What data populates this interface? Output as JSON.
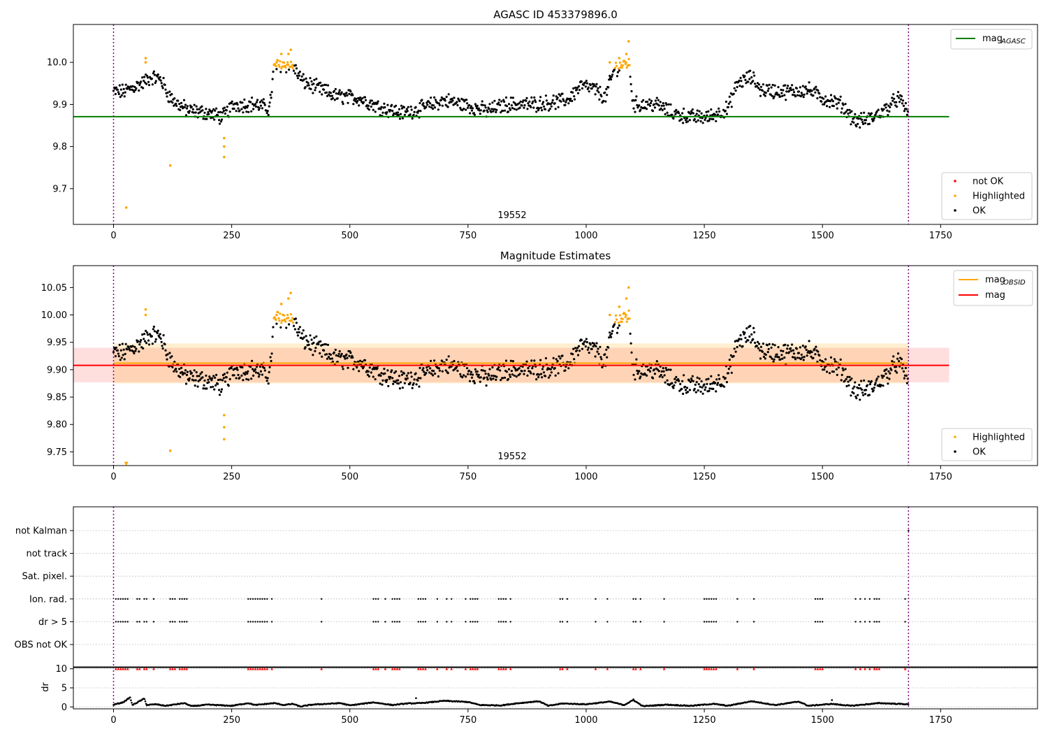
{
  "chart_data": [
    {
      "type": "scatter",
      "title": "AGASC ID 453379896.0",
      "ylim": [
        9.615,
        10.09
      ],
      "xlim": [
        -85,
        1955
      ],
      "xticks": [
        0,
        250,
        500,
        750,
        1000,
        1250,
        1500,
        1750
      ],
      "yticks": [
        9.7,
        9.8,
        9.9,
        10.0
      ],
      "yticklabels": [
        "9.7",
        "9.8",
        "9.9",
        "10.0"
      ],
      "obsid_label": "19552",
      "obsid_label_x": 840,
      "vlines": [
        0,
        1682
      ],
      "hlines": [
        {
          "name": "mag_AGASC",
          "value": 9.871,
          "x0": -85,
          "x1": 1768,
          "color": "#008000"
        }
      ],
      "legend_lines": {
        "placement": "top-right",
        "entries": [
          {
            "label": "mag",
            "sub": "AGASC",
            "color": "#008000"
          }
        ]
      },
      "legend_points": {
        "placement": "bottom-right",
        "entries": [
          {
            "label": "not OK",
            "color": "#ff0000"
          },
          {
            "label": "Highlighted",
            "color": "#ffa500"
          },
          {
            "label": "OK",
            "color": "#000000"
          }
        ]
      },
      "trend": [
        [
          0,
          9.93
        ],
        [
          20,
          9.93
        ],
        [
          40,
          9.94
        ],
        [
          60,
          9.95
        ],
        [
          80,
          9.965
        ],
        [
          100,
          9.96
        ],
        [
          115,
          9.925
        ],
        [
          130,
          9.905
        ],
        [
          160,
          9.885
        ],
        [
          200,
          9.88
        ],
        [
          230,
          9.87
        ],
        [
          255,
          9.9
        ],
        [
          300,
          9.9
        ],
        [
          330,
          9.89
        ],
        [
          340,
          9.99
        ],
        [
          360,
          9.995
        ],
        [
          380,
          9.99
        ],
        [
          400,
          9.955
        ],
        [
          430,
          9.94
        ],
        [
          470,
          9.92
        ],
        [
          520,
          9.915
        ],
        [
          560,
          9.895
        ],
        [
          610,
          9.88
        ],
        [
          650,
          9.89
        ],
        [
          700,
          9.91
        ],
        [
          740,
          9.9
        ],
        [
          790,
          9.885
        ],
        [
          830,
          9.9
        ],
        [
          880,
          9.9
        ],
        [
          930,
          9.905
        ],
        [
          960,
          9.91
        ],
        [
          990,
          9.945
        ],
        [
          1020,
          9.935
        ],
        [
          1040,
          9.915
        ],
        [
          1060,
          9.985
        ],
        [
          1090,
          10.0
        ],
        [
          1100,
          9.9
        ],
        [
          1130,
          9.9
        ],
        [
          1150,
          9.9
        ],
        [
          1180,
          9.88
        ],
        [
          1220,
          9.87
        ],
        [
          1260,
          9.87
        ],
        [
          1300,
          9.89
        ],
        [
          1320,
          9.95
        ],
        [
          1350,
          9.965
        ],
        [
          1370,
          9.935
        ],
        [
          1420,
          9.93
        ],
        [
          1470,
          9.935
        ],
        [
          1500,
          9.915
        ],
        [
          1540,
          9.9
        ],
        [
          1570,
          9.86
        ],
        [
          1600,
          9.865
        ],
        [
          1630,
          9.885
        ],
        [
          1660,
          9.915
        ],
        [
          1682,
          9.88
        ]
      ],
      "highlighted_points": [
        [
          27,
          9.655
        ],
        [
          68,
          10.0
        ],
        [
          68,
          10.01
        ],
        [
          120,
          9.755
        ],
        [
          234,
          9.775
        ],
        [
          234,
          9.8
        ],
        [
          234,
          9.82
        ],
        [
          345,
          10.0
        ],
        [
          355,
          10.02
        ],
        [
          370,
          10.02
        ],
        [
          375,
          10.03
        ],
        [
          1050,
          10.0
        ],
        [
          1070,
          10.01
        ],
        [
          1085,
          10.02
        ],
        [
          1090,
          10.05
        ]
      ],
      "highlighted_bands": [
        {
          "x0": 335,
          "x1": 382,
          "low": 9.995,
          "high": 10.035
        },
        {
          "x0": 1045,
          "x1": 1092,
          "low": 9.995,
          "high": 10.05
        }
      ]
    },
    {
      "type": "scatter",
      "title": "Magnitude Estimates",
      "ylim": [
        9.725,
        10.09
      ],
      "xlim": [
        -85,
        1955
      ],
      "xticks": [
        0,
        250,
        500,
        750,
        1000,
        1250,
        1500,
        1750
      ],
      "yticks": [
        9.75,
        9.8,
        9.85,
        9.9,
        9.95,
        10.0,
        10.05
      ],
      "yticklabels": [
        "9.75",
        "9.80",
        "9.85",
        "9.90",
        "9.95",
        "10.00",
        "10.05"
      ],
      "obsid_label": "19552",
      "obsid_label_x": 840,
      "vlines": [
        0,
        1682
      ],
      "hlines": [
        {
          "name": "mag_OBSID",
          "value": 9.912,
          "x0": 0,
          "x1": 1682,
          "color": "#ffa500"
        },
        {
          "name": "mag",
          "value": 9.908,
          "x0": -85,
          "x1": 1768,
          "color": "#ff0000"
        }
      ],
      "bands": [
        {
          "low": 9.877,
          "high": 9.94,
          "x0": -85,
          "x1": 1768,
          "color": "#ff0000",
          "opacity": 0.13
        },
        {
          "low": 9.875,
          "high": 9.948,
          "x0": 0,
          "x1": 1682,
          "color": "#ffa500",
          "opacity": 0.18
        }
      ],
      "legend_lines": {
        "placement": "top-right",
        "entries": [
          {
            "label": "mag",
            "sub": "OBSID",
            "color": "#ffa500"
          },
          {
            "label": "mag",
            "sub": "",
            "color": "#ff0000"
          }
        ]
      },
      "legend_points": {
        "placement": "bottom-right",
        "entries": [
          {
            "label": "Highlighted",
            "color": "#ffa500"
          },
          {
            "label": "OK",
            "color": "#000000"
          }
        ]
      },
      "trend_from_panel": 0,
      "highlighted_points": [
        [
          68,
          10.0
        ],
        [
          68,
          10.01
        ],
        [
          120,
          9.752
        ],
        [
          234,
          9.773
        ],
        [
          234,
          9.795
        ],
        [
          234,
          9.817
        ],
        [
          345,
          10.0
        ],
        [
          355,
          10.02
        ],
        [
          370,
          10.03
        ],
        [
          375,
          10.04
        ],
        [
          1050,
          10.0
        ],
        [
          1070,
          10.015
        ],
        [
          1085,
          10.03
        ],
        [
          1090,
          10.05
        ]
      ],
      "highlighted_markers": [
        {
          "x": 27,
          "y": 9.728,
          "shape": "down-triangle"
        }
      ],
      "highlighted_bands": [
        {
          "x0": 335,
          "x1": 382,
          "low": 9.995,
          "high": 10.035
        },
        {
          "x0": 1045,
          "x1": 1092,
          "low": 9.995,
          "high": 10.05
        }
      ]
    },
    {
      "type": "scatter",
      "title": "",
      "xlim": [
        -85,
        1955
      ],
      "flag_rows": [
        "not Kalman",
        "not track",
        "Sat. pixel.",
        "Ion. rad.",
        "dr > 5",
        "OBS not OK"
      ],
      "flag_points": {
        "Ion. rad.": [
          5,
          10,
          15,
          20,
          25,
          30,
          50,
          55,
          65,
          70,
          85,
          120,
          125,
          130,
          140,
          145,
          150,
          155,
          285,
          290,
          295,
          300,
          305,
          310,
          315,
          320,
          325,
          335,
          440,
          550,
          555,
          560,
          575,
          590,
          595,
          600,
          605,
          645,
          650,
          655,
          660,
          685,
          705,
          715,
          745,
          755,
          760,
          765,
          770,
          815,
          820,
          825,
          830,
          840,
          945,
          950,
          960,
          1020,
          1045,
          1100,
          1105,
          1115,
          1165,
          1250,
          1255,
          1260,
          1265,
          1270,
          1275,
          1320,
          1355,
          1485,
          1490,
          1495,
          1500,
          1570,
          1580,
          1590,
          1600,
          1610,
          1615,
          1620,
          1675
        ],
        "dr > 5": [
          5,
          10,
          15,
          20,
          25,
          30,
          50,
          55,
          65,
          70,
          85,
          120,
          125,
          130,
          140,
          145,
          150,
          155,
          285,
          290,
          295,
          300,
          305,
          310,
          315,
          320,
          325,
          335,
          440,
          550,
          555,
          560,
          575,
          590,
          595,
          600,
          605,
          645,
          650,
          655,
          660,
          685,
          705,
          715,
          745,
          755,
          760,
          765,
          770,
          815,
          820,
          825,
          830,
          840,
          945,
          950,
          960,
          1020,
          1045,
          1100,
          1105,
          1115,
          1165,
          1250,
          1255,
          1260,
          1265,
          1270,
          1275,
          1320,
          1355,
          1485,
          1490,
          1495,
          1500,
          1570,
          1580,
          1590,
          1600,
          1610,
          1615,
          1620,
          1675
        ],
        "not Kalman": [
          1682
        ]
      },
      "vlines": [
        0,
        1682
      ]
    },
    {
      "type": "scatter",
      "ylabel": "dr",
      "ylim": [
        -0.5,
        10.5
      ],
      "xlim": [
        -85,
        1955
      ],
      "xticks": [
        0,
        250,
        500,
        750,
        1000,
        1250,
        1500,
        1750
      ],
      "yticks": [
        0,
        5,
        10
      ],
      "yticklabels": [
        "0",
        "5",
        "10"
      ],
      "vlines": [
        0,
        1682
      ],
      "dr_threshold": 10,
      "dr_trend": [
        [
          0,
          0.6
        ],
        [
          20,
          1.2
        ],
        [
          35,
          2.5
        ],
        [
          40,
          0.5
        ],
        [
          55,
          1.5
        ],
        [
          65,
          2.2
        ],
        [
          70,
          0.5
        ],
        [
          90,
          0.7
        ],
        [
          110,
          0.3
        ],
        [
          150,
          1.0
        ],
        [
          165,
          0.2
        ],
        [
          200,
          0.6
        ],
        [
          250,
          0.3
        ],
        [
          285,
          1.0
        ],
        [
          300,
          0.5
        ],
        [
          340,
          1.0
        ],
        [
          360,
          0.5
        ],
        [
          380,
          0.8
        ],
        [
          395,
          0.1
        ],
        [
          420,
          0.6
        ],
        [
          480,
          1.0
        ],
        [
          500,
          0.4
        ],
        [
          550,
          1.2
        ],
        [
          590,
          0.5
        ],
        [
          620,
          0.9
        ],
        [
          650,
          1.0
        ],
        [
          700,
          1.6
        ],
        [
          750,
          1.3
        ],
        [
          775,
          0.5
        ],
        [
          820,
          0.4
        ],
        [
          850,
          0.9
        ],
        [
          900,
          1.5
        ],
        [
          920,
          0.3
        ],
        [
          950,
          0.9
        ],
        [
          1000,
          0.7
        ],
        [
          1050,
          1.4
        ],
        [
          1080,
          0.5
        ],
        [
          1100,
          1.8
        ],
        [
          1120,
          0.2
        ],
        [
          1170,
          0.6
        ],
        [
          1220,
          0.3
        ],
        [
          1270,
          0.8
        ],
        [
          1300,
          0.3
        ],
        [
          1350,
          1.5
        ],
        [
          1400,
          0.5
        ],
        [
          1450,
          1.4
        ],
        [
          1470,
          0.3
        ],
        [
          1520,
          0.8
        ],
        [
          1560,
          0.3
        ],
        [
          1620,
          1.0
        ],
        [
          1682,
          0.7
        ]
      ],
      "dr_outliers": [
        [
          1100,
          2.0
        ],
        [
          1520,
          1.8
        ],
        [
          640,
          2.3
        ]
      ]
    }
  ]
}
